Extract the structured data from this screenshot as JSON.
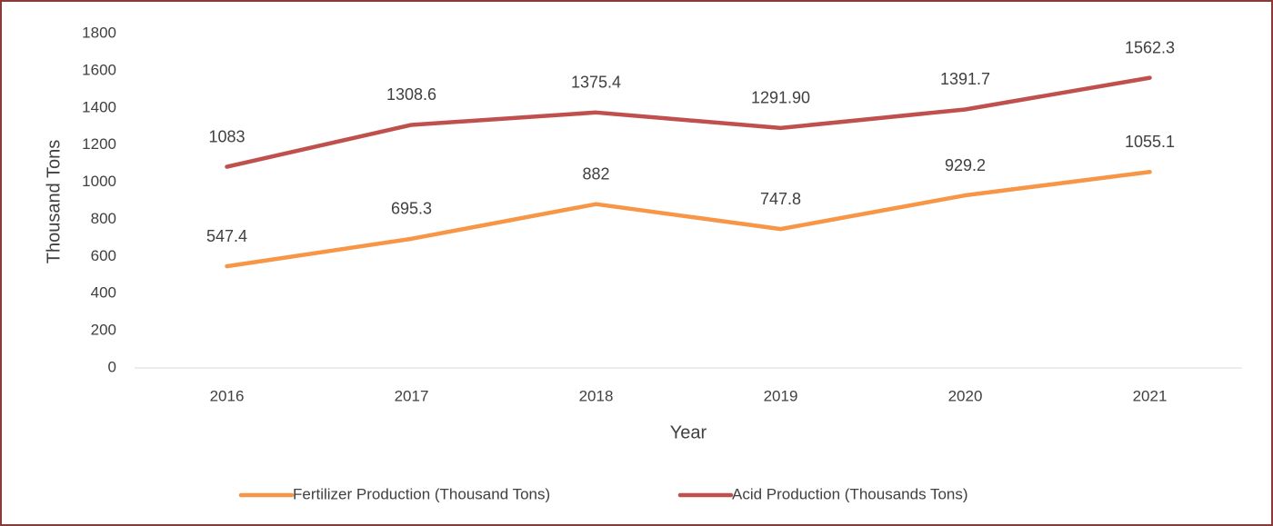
{
  "chart_data": {
    "type": "line",
    "x_label": "Year",
    "y_label": "Thousand Tons",
    "categories": [
      "2016",
      "2017",
      "2018",
      "2019",
      "2020",
      "2021"
    ],
    "series": [
      {
        "name": "Fertilizer Production (Thousand Tons)",
        "color": "#f79646",
        "values": [
          547.4,
          695.3,
          882,
          747.8,
          929.2,
          1055.1
        ]
      },
      {
        "name": "Acid Production (Thousands Tons)",
        "color": "#c0504d",
        "values": [
          1083,
          1308.6,
          1375.4,
          1291.9,
          1391.7,
          1562.3
        ],
        "value_labels": [
          "1083",
          "1308.6",
          "1375.4",
          "1291.90",
          "1391.7",
          "1562.3"
        ]
      }
    ],
    "ylim": [
      0,
      1800
    ],
    "yticks": [
      0,
      200,
      400,
      600,
      800,
      1000,
      1200,
      1400,
      1600,
      1800
    ],
    "grid": false,
    "legend": "bottom"
  }
}
